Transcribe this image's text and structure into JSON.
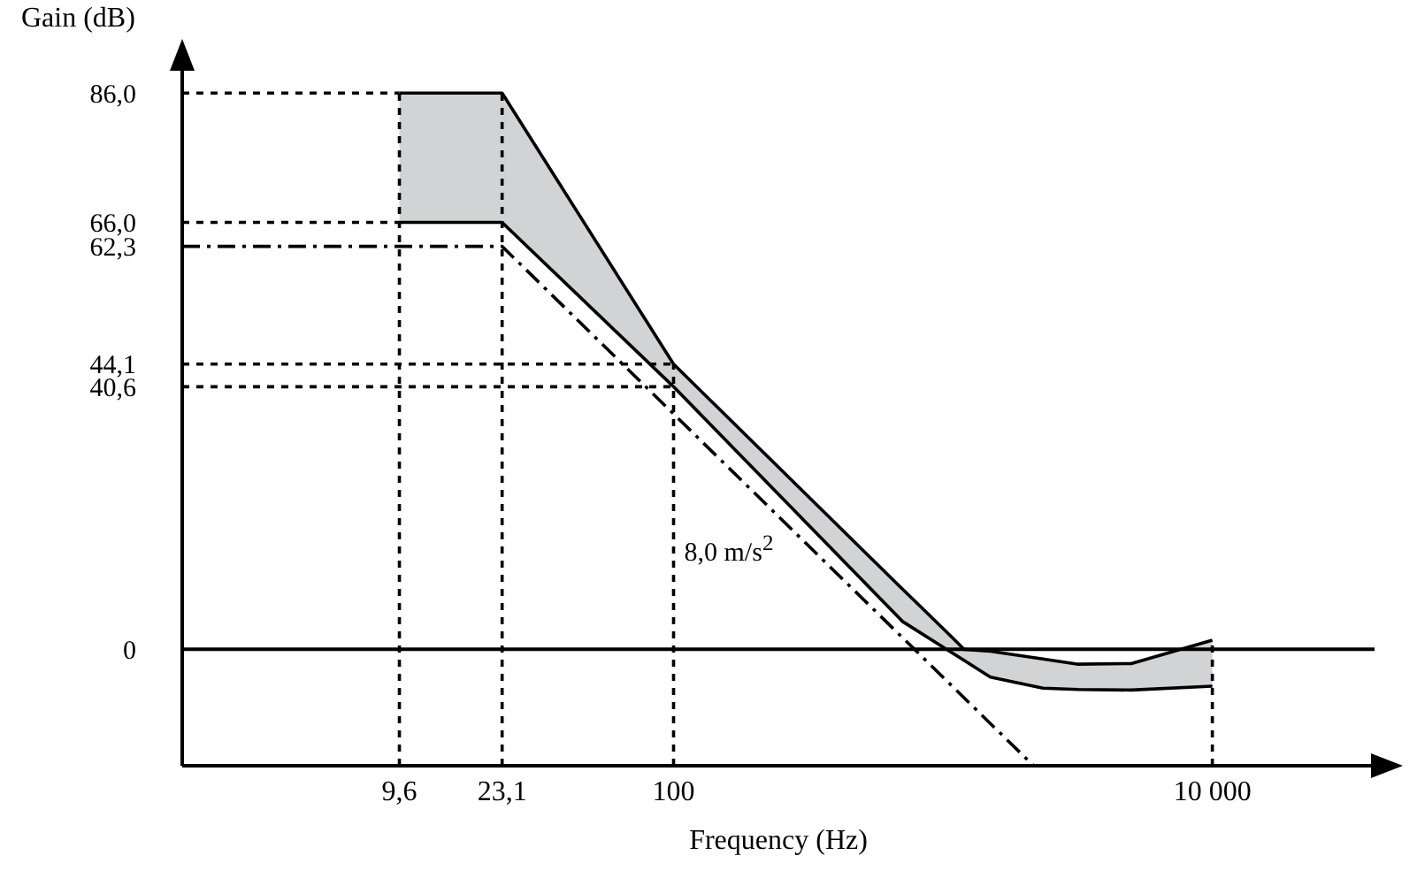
{
  "chart_data": {
    "type": "line",
    "xlabel": "Frequency (Hz)",
    "ylabel": "Gain (dB)",
    "log": "x",
    "xlim": [
      1.5,
      40000
    ],
    "ylim": [
      -18,
      90
    ],
    "xticks": [
      {
        "value": 9.6,
        "label": "9,6"
      },
      {
        "value": 23.1,
        "label": "23,1"
      },
      100,
      {
        "value": 10000,
        "label": "10 000"
      }
    ],
    "yticks": [
      0,
      {
        "value": 40.6,
        "label": "40,6"
      },
      {
        "value": 44.1,
        "label": "44,1"
      },
      {
        "value": 62.3,
        "label": "62,3"
      },
      {
        "value": 66,
        "label": "66,0"
      },
      {
        "value": 86,
        "label": "86,0"
      }
    ],
    "grid": false,
    "marker": "none",
    "series": [
      {
        "color": "#000000",
        "x": [
          9.6,
          23.1,
          100,
          708,
          1030,
          1197,
          1500,
          2350,
          3180,
          5000,
          10000
        ],
        "values": [
          66,
          66,
          40.6,
          4.3,
          0,
          -1.7,
          -4.3,
          -6,
          -6.2,
          -6.3,
          -5.7
        ],
        "lower": [
          66,
          66,
          40.6,
          4.3,
          0,
          -1.7,
          -4.3,
          -6,
          -6.2,
          -6.3,
          -5.7
        ],
        "upper": [
          86,
          86,
          44.1,
          9.3,
          2.7,
          0,
          -0.3,
          -1.5,
          -2.3,
          -2.2,
          1.4
        ]
      },
      {
        "color": "#000000",
        "x": [
          9.6,
          23.1,
          100,
          708,
          1030,
          1197,
          1500,
          2350,
          3180,
          5000,
          10000
        ],
        "values": [
          86,
          86,
          44.1,
          9.3,
          2.7,
          0,
          -0.3,
          -1.5,
          -2.3,
          -2.2,
          1.4
        ]
      },
      {
        "type": "line",
        "color": "#000000",
        "line_style": "dashed",
        "x": [
          1.5,
          23.1,
          2170
        ],
        "values": [
          62.3,
          62.3,
          -18
        ]
      },
      {
        "color": "#000000",
        "line_style": "dotted",
        "x": [
          1.5,
          9.6
        ],
        "values": [
          86,
          86
        ]
      },
      {
        "color": "#000000",
        "line_style": "dotted",
        "x": [
          1.5,
          9.6
        ],
        "values": [
          66,
          66
        ]
      },
      {
        "color": "#000000",
        "line_style": "dotted",
        "x": [
          1.5,
          100
        ],
        "values": [
          44.1,
          44.1
        ]
      },
      {
        "color": "#000000",
        "line_style": "dotted",
        "x": [
          1.5,
          100
        ],
        "values": [
          40.6,
          40.6
        ]
      },
      {
        "color": "#000000",
        "line_style": "dotted",
        "x": [
          9.6,
          9.6
        ],
        "values": [
          -18,
          86
        ]
      },
      {
        "color": "#000000",
        "line_style": "dotted",
        "x": [
          23.1,
          23.1
        ],
        "values": [
          -18,
          86
        ]
      },
      {
        "color": "#000000",
        "line_style": "dotted",
        "x": [
          100,
          100
        ],
        "values": [
          -18,
          44.1
        ]
      },
      {
        "color": "#000000",
        "line_style": "dotted",
        "x": [
          10000,
          10000
        ],
        "values": [
          -18,
          1.4
        ]
      }
    ],
    "ref_lines": [
      {
        "axis": "y",
        "value": 0,
        "line_style": "solid",
        "color": "#000000"
      }
    ],
    "annotations": [
      "8,0 m/s$^{2}$"
    ]
  }
}
